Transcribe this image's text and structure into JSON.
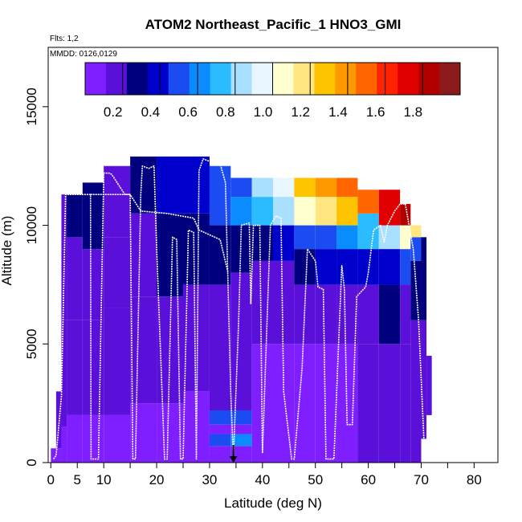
{
  "chart_data": {
    "type": "heatmap",
    "title": "ATOM2 Northeast_Pacific_1 HNO3_GMI",
    "flights_label": "Flts: 1,2",
    "date_label": "MMDD: 0126,0129",
    "xlabel": "Latitude (deg N)",
    "ylabel": "Altitude (m)",
    "xlim": [
      -0.5,
      84.5
    ],
    "ylim": [
      0,
      17500
    ],
    "x_ticks": [
      0,
      5,
      10,
      20,
      30,
      40,
      50,
      60,
      70,
      80
    ],
    "x_minor_ticks": [
      15,
      25,
      35,
      45,
      55,
      65,
      75,
      85
    ],
    "y_ticks": [
      0,
      5000,
      10000,
      15000
    ],
    "colorbar": {
      "min": 0,
      "max": 2.0,
      "ticks": [
        0.2,
        0.4,
        0.6,
        0.8,
        1.0,
        1.2,
        1.4,
        1.6,
        1.8
      ],
      "colors": [
        "#7f1fff",
        "#5a10d8",
        "#00007f",
        "#0000cc",
        "#1a4cf2",
        "#0a8cff",
        "#2bbcff",
        "#a9dfff",
        "#e8f6ff",
        "#ffffd0",
        "#ffe680",
        "#ffc400",
        "#ff9900",
        "#ff6600",
        "#ff2200",
        "#e00000",
        "#b20000",
        "#8b1a1a"
      ]
    },
    "cells": [
      {
        "x0": 0,
        "x1": 2,
        "z": [
          [
            0,
            600,
            0.08
          ]
        ]
      },
      {
        "x0": 1,
        "x1": 2,
        "z": [
          [
            600,
            3000,
            0.12
          ]
        ]
      },
      {
        "x0": 2,
        "x1": 3,
        "z": [
          [
            0,
            1500,
            0.06
          ],
          [
            1500,
            6000,
            0.14
          ],
          [
            6000,
            9000,
            0.16
          ],
          [
            9000,
            11300,
            0.22
          ]
        ]
      },
      {
        "x0": 3,
        "x1": 6,
        "z": [
          [
            0,
            2000,
            0.08
          ],
          [
            2000,
            6000,
            0.16
          ],
          [
            6000,
            9500,
            0.2
          ],
          [
            9500,
            11300,
            0.26
          ]
        ]
      },
      {
        "x0": 6,
        "x1": 10,
        "z": [
          [
            0,
            2000,
            0.08
          ],
          [
            2000,
            6000,
            0.18
          ],
          [
            6000,
            9000,
            0.2
          ],
          [
            9000,
            11800,
            0.24
          ]
        ]
      },
      {
        "x0": 10,
        "x1": 15,
        "z": [
          [
            0,
            2000,
            0.07
          ],
          [
            2000,
            6500,
            0.15
          ],
          [
            6500,
            9500,
            0.18
          ],
          [
            9500,
            12500,
            0.22
          ]
        ]
      },
      {
        "x0": 15,
        "x1": 20,
        "z": [
          [
            0,
            2500,
            0.08
          ],
          [
            2500,
            7000,
            0.18
          ],
          [
            7000,
            10500,
            0.22
          ],
          [
            10500,
            12900,
            0.3
          ]
        ]
      },
      {
        "x0": 20,
        "x1": 25,
        "z": [
          [
            0,
            2500,
            0.08
          ],
          [
            2500,
            7000,
            0.2
          ],
          [
            7000,
            10500,
            0.24
          ],
          [
            10500,
            12900,
            0.36
          ]
        ]
      },
      {
        "x0": 25,
        "x1": 30,
        "z": [
          [
            0,
            3000,
            0.08
          ],
          [
            3000,
            7500,
            0.2
          ],
          [
            7500,
            10500,
            0.3
          ],
          [
            10500,
            12900,
            0.4
          ]
        ]
      },
      {
        "x0": 30,
        "x1": 34,
        "z": [
          [
            0,
            700,
            0.1
          ],
          [
            700,
            1200,
            0.55
          ],
          [
            1200,
            1600,
            0.1
          ],
          [
            1600,
            2200,
            0.5
          ],
          [
            2200,
            7500,
            0.16
          ],
          [
            7500,
            10000,
            0.3
          ],
          [
            10000,
            12500,
            0.5
          ]
        ]
      },
      {
        "x0": 34,
        "x1": 38,
        "z": [
          [
            0,
            700,
            0.1
          ],
          [
            700,
            1200,
            0.6
          ],
          [
            1200,
            1600,
            0.1
          ],
          [
            1600,
            2200,
            0.45
          ],
          [
            2200,
            8000,
            0.14
          ],
          [
            8000,
            10000,
            0.3
          ],
          [
            10000,
            11200,
            0.62
          ],
          [
            11200,
            12000,
            0.55
          ]
        ]
      },
      {
        "x0": 38,
        "x1": 42,
        "z": [
          [
            0,
            5000,
            0.1
          ],
          [
            5000,
            8500,
            0.14
          ],
          [
            8500,
            10000,
            0.28
          ],
          [
            10000,
            11200,
            0.7
          ],
          [
            11200,
            12000,
            0.8
          ]
        ]
      },
      {
        "x0": 42,
        "x1": 46,
        "z": [
          [
            0,
            5000,
            0.1
          ],
          [
            5000,
            8500,
            0.16
          ],
          [
            8500,
            10000,
            0.35
          ],
          [
            10000,
            11200,
            0.8
          ],
          [
            11200,
            12000,
            0.95
          ]
        ]
      },
      {
        "x0": 46,
        "x1": 50,
        "z": [
          [
            0,
            5000,
            0.1
          ],
          [
            5000,
            7500,
            0.18
          ],
          [
            7500,
            9000,
            0.3
          ],
          [
            9000,
            10000,
            0.45
          ],
          [
            10000,
            11200,
            1.0
          ],
          [
            11200,
            12000,
            1.25
          ]
        ]
      },
      {
        "x0": 50,
        "x1": 54,
        "z": [
          [
            0,
            5000,
            0.1
          ],
          [
            5000,
            7500,
            0.2
          ],
          [
            7500,
            9000,
            0.35
          ],
          [
            9000,
            10000,
            0.55
          ],
          [
            10000,
            11200,
            1.15
          ],
          [
            11200,
            12000,
            1.4
          ]
        ]
      },
      {
        "x0": 54,
        "x1": 58,
        "z": [
          [
            0,
            5000,
            0.1
          ],
          [
            5000,
            7500,
            0.2
          ],
          [
            7500,
            9000,
            0.38
          ],
          [
            9000,
            10000,
            0.6
          ],
          [
            10000,
            11200,
            1.3
          ],
          [
            11200,
            12000,
            1.55
          ]
        ]
      },
      {
        "x0": 58,
        "x1": 62,
        "z": [
          [
            0,
            5000,
            0.12
          ],
          [
            5000,
            7500,
            0.22
          ],
          [
            7500,
            9000,
            0.4
          ],
          [
            9000,
            10500,
            0.7
          ],
          [
            10500,
            11500,
            1.5
          ]
        ]
      },
      {
        "x0": 62,
        "x1": 66,
        "z": [
          [
            0,
            5000,
            0.12
          ],
          [
            5000,
            7500,
            0.24
          ],
          [
            7500,
            9000,
            0.42
          ],
          [
            9000,
            10000,
            0.8
          ],
          [
            10000,
            11500,
            1.7
          ]
        ]
      },
      {
        "x0": 66,
        "x1": 68,
        "z": [
          [
            0,
            5000,
            0.12
          ],
          [
            5000,
            7500,
            0.22
          ],
          [
            7500,
            9000,
            0.45
          ],
          [
            9000,
            10000,
            1.1
          ],
          [
            10000,
            10900,
            1.8
          ]
        ]
      },
      {
        "x0": 68,
        "x1": 70,
        "z": [
          [
            0,
            6000,
            0.12
          ],
          [
            6000,
            8500,
            0.25
          ],
          [
            8500,
            9500,
            0.5
          ],
          [
            9500,
            10000,
            1.2
          ]
        ]
      },
      {
        "x0": 70,
        "x1": 71,
        "z": [
          [
            1000,
            6000,
            0.12
          ],
          [
            6000,
            9500,
            0.3
          ]
        ]
      },
      {
        "x0": 71,
        "x1": 72,
        "z": [
          [
            2000,
            4500,
            0.14
          ]
        ]
      }
    ],
    "flight_path": [
      [
        0.5,
        150
      ],
      [
        1.0,
        300
      ],
      [
        2.0,
        2800
      ],
      [
        2.8,
        11300
      ],
      [
        4.5,
        11300
      ],
      [
        7.0,
        11300
      ],
      [
        7.5,
        11300
      ],
      [
        7.6,
        150
      ],
      [
        9.0,
        150
      ],
      [
        10.0,
        12200
      ],
      [
        11.0,
        12200
      ],
      [
        11.5,
        12150
      ],
      [
        14.0,
        11300
      ],
      [
        15.0,
        11300
      ],
      [
        15.5,
        150
      ],
      [
        16.0,
        150
      ],
      [
        17.0,
        11300
      ],
      [
        17.3,
        12500
      ],
      [
        18.5,
        12400
      ],
      [
        19.5,
        12500
      ],
      [
        20.0,
        9000
      ],
      [
        21.5,
        150
      ],
      [
        22.0,
        150
      ],
      [
        23.0,
        9500
      ],
      [
        23.8,
        9400
      ],
      [
        24.5,
        150
      ],
      [
        25.0,
        150
      ],
      [
        26.0,
        9800
      ],
      [
        27.0,
        9700
      ],
      [
        27.5,
        150
      ],
      [
        28.0,
        12300
      ],
      [
        28.8,
        12800
      ],
      [
        30.0,
        12700
      ],
      [
        32.0,
        12600
      ],
      [
        33.0,
        11800
      ],
      [
        34.0,
        3000
      ],
      [
        34.5,
        150
      ]
    ],
    "flight_path_2": [
      [
        7.5,
        11300
      ],
      [
        10,
        11300
      ],
      [
        15,
        11300
      ],
      [
        17,
        10600
      ],
      [
        22,
        10500
      ],
      [
        27,
        10300
      ],
      [
        28,
        9800
      ],
      [
        32,
        9400
      ],
      [
        33.5,
        8000
      ]
    ],
    "flight_path_3": [
      [
        34.5,
        150
      ],
      [
        35.5,
        6000
      ],
      [
        36.0,
        10000
      ],
      [
        37.5,
        10100
      ],
      [
        37.8,
        6700
      ],
      [
        38.3,
        10000
      ],
      [
        39.5,
        10000
      ],
      [
        40.0,
        400
      ],
      [
        41.5,
        10000
      ],
      [
        42.5,
        10400
      ],
      [
        43.5,
        10300
      ],
      [
        44.0,
        3000
      ],
      [
        45.5,
        150
      ],
      [
        46.0,
        150
      ],
      [
        47.5,
        4000
      ],
      [
        48.5,
        9000
      ],
      [
        50.0,
        8500
      ],
      [
        50.5,
        7400
      ],
      [
        51.5,
        7300
      ],
      [
        52.0,
        150
      ],
      [
        53.5,
        150
      ],
      [
        55.0,
        8300
      ],
      [
        55.5,
        7300
      ],
      [
        56.0,
        1600
      ],
      [
        57.0,
        1600
      ],
      [
        57.8,
        7000
      ],
      [
        59.5,
        7400
      ],
      [
        60.0,
        8000
      ],
      [
        61.0,
        9800
      ],
      [
        62.3,
        10000
      ],
      [
        63.0,
        9300
      ],
      [
        63.6,
        10000
      ],
      [
        65.0,
        10600
      ],
      [
        66.0,
        10900
      ],
      [
        67.0,
        10900
      ],
      [
        68.5,
        9000
      ],
      [
        69.5,
        6000
      ],
      [
        70.5,
        1000
      ],
      [
        71.0,
        150
      ]
    ],
    "marker": {
      "x": 34.5,
      "y": 0
    }
  }
}
